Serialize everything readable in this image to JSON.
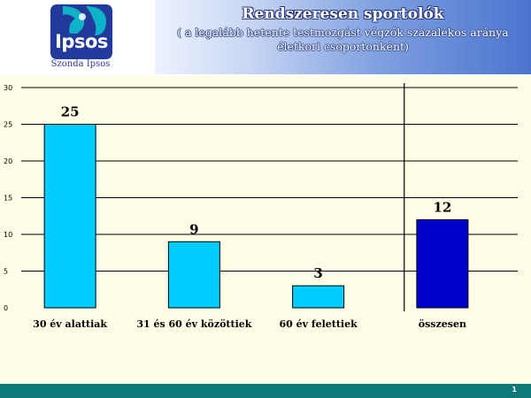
{
  "header": {
    "logo_text": "Ipsos",
    "logo_caption": "Szonda Ipsos",
    "title": "Rendszeresen sportolók",
    "subtitle_line1": "( a legalább hetente testmozgást végzők százalékos aránya",
    "subtitle_line2": "életkori csoportonként)"
  },
  "chart_data": {
    "type": "bar",
    "title": "Rendszeresen sportolók",
    "xlabel": "",
    "ylabel": "",
    "categories": [
      "30 év alattiak",
      "31 és 60 év közöttiek",
      "60 év felettiek",
      "összesen"
    ],
    "values": [
      25,
      9,
      3,
      12
    ],
    "data_labels": [
      "25",
      "9",
      "3",
      "12"
    ],
    "bar_colors": [
      "#00ccff",
      "#00ccff",
      "#00ccff",
      "#0000cc"
    ],
    "ylim": [
      0,
      30
    ],
    "yticks": [
      0,
      5,
      10,
      15,
      20,
      25,
      30
    ],
    "ytick_labels": [
      "0",
      "5",
      "10",
      "15",
      "20",
      "25",
      "30"
    ],
    "grid": true
  },
  "footer": {
    "page_number": "1",
    "bar_color": "#0e7a78"
  }
}
